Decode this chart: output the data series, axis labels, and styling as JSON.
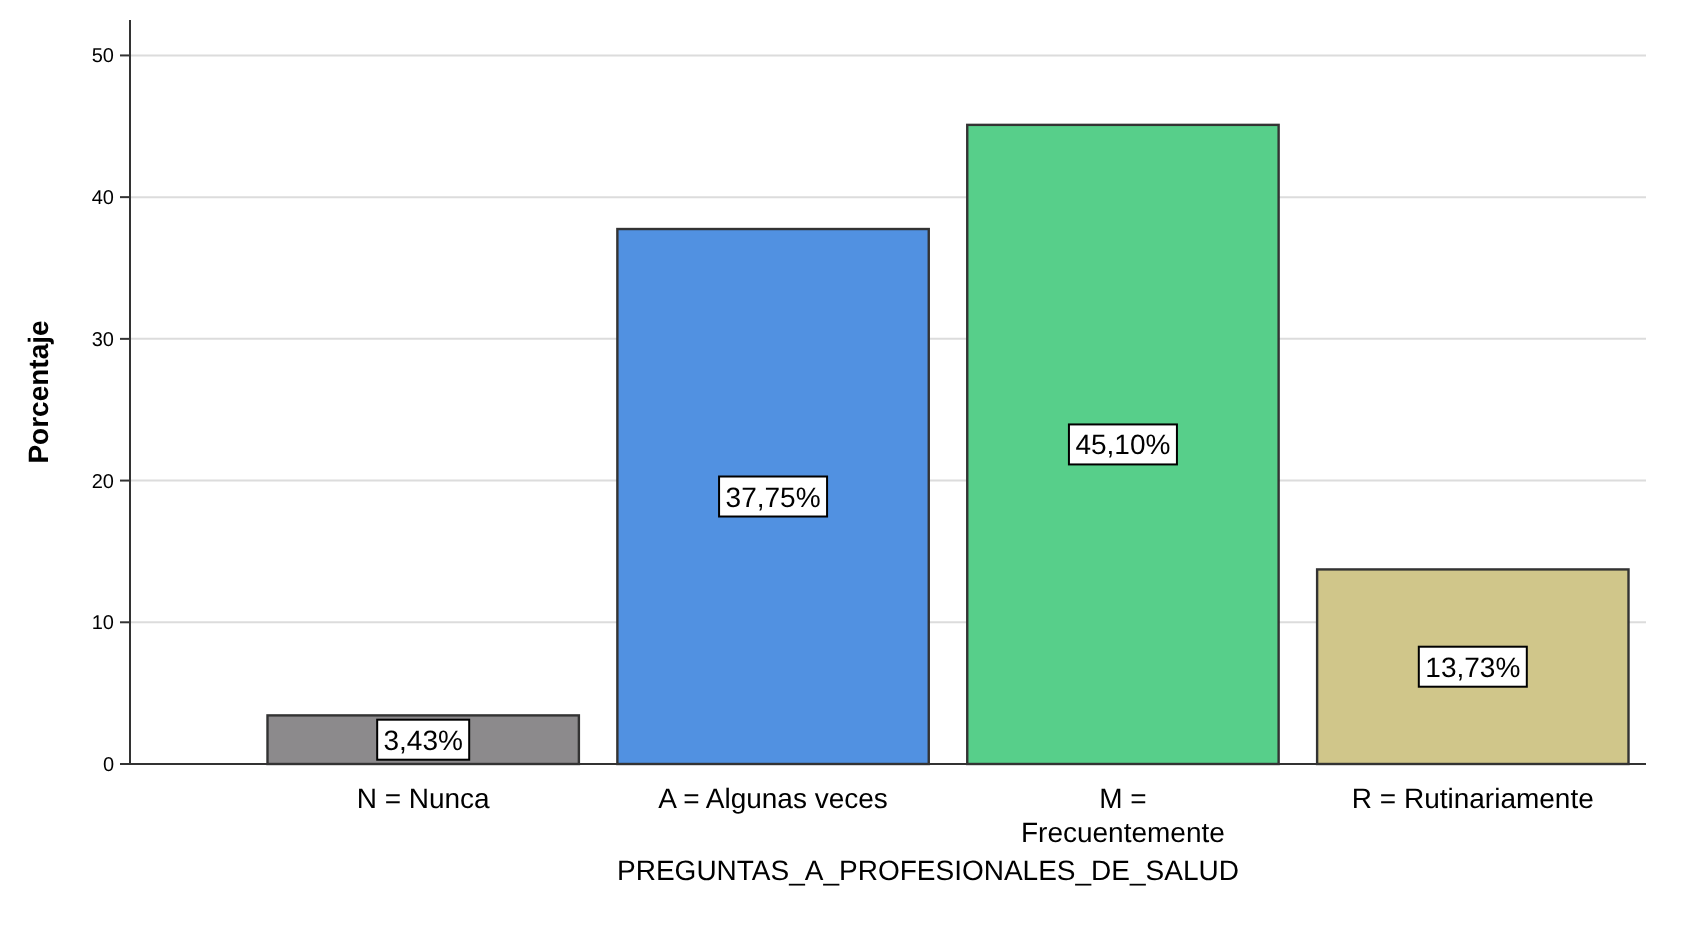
{
  "chart_data": {
    "type": "bar",
    "xlabel": "PREGUNTAS_A_PROFESIONALES_DE_SALUD",
    "ylabel": "Porcentaje",
    "categories": [
      "N = Nunca",
      "A = Algunas veces",
      "M =\nFrecuentemente",
      "R = Rutinariamente"
    ],
    "values": [
      3.43,
      37.75,
      45.1,
      13.73
    ],
    "colors": [
      "#8c8a8c",
      "#5191e1",
      "#57cf8a",
      "#d0c68a"
    ],
    "value_labels": [
      "3,43%",
      "37,75%",
      "45,10%",
      "13,73%"
    ],
    "ylim": [
      0,
      52.5
    ],
    "yticks": [
      0,
      10,
      20,
      30,
      40,
      50
    ],
    "grid": "y"
  }
}
